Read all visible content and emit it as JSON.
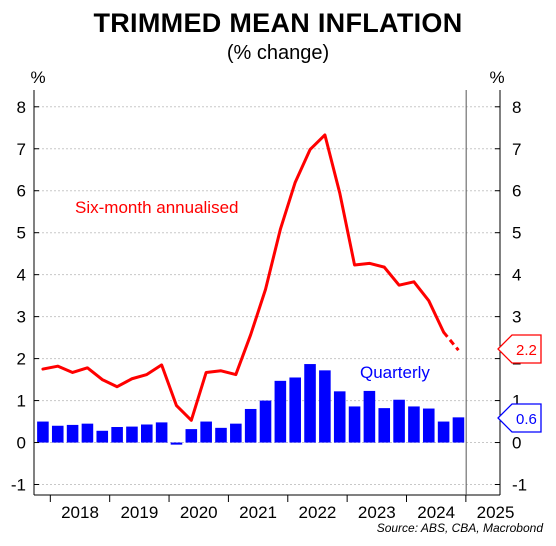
{
  "chart_data": {
    "type": "bar+line",
    "title": "TRIMMED MEAN INFLATION",
    "subtitle": "(% change)",
    "y_unit_left": "%",
    "y_unit_right": "%",
    "ylim": [
      -1.25,
      8.4
    ],
    "y_ticks": [
      -1,
      0,
      1,
      2,
      3,
      4,
      5,
      6,
      7,
      8
    ],
    "year_labels": [
      "2018",
      "2019",
      "2020",
      "2021",
      "2022",
      "2023",
      "2024",
      "2025"
    ],
    "grid": true,
    "series": [
      {
        "name": "Quarterly",
        "type": "bar",
        "color": "#0000ff",
        "x": [
          2017.75,
          2018.0,
          2018.25,
          2018.5,
          2018.75,
          2019.0,
          2019.25,
          2019.5,
          2019.75,
          2020.0,
          2020.25,
          2020.5,
          2020.75,
          2021.0,
          2021.25,
          2021.5,
          2021.75,
          2022.0,
          2022.25,
          2022.5,
          2022.75,
          2023.0,
          2023.25,
          2023.5,
          2023.75,
          2024.0,
          2024.25,
          2024.5,
          2024.75,
          2025.0
        ],
        "values": [
          0.5,
          0.4,
          0.42,
          0.45,
          0.28,
          0.37,
          0.38,
          0.43,
          0.48,
          -0.05,
          0.32,
          0.5,
          0.35,
          0.45,
          0.8,
          1.0,
          1.47,
          1.55,
          1.87,
          1.72,
          1.22,
          0.86,
          1.23,
          0.82,
          1.02,
          0.86,
          0.81,
          0.5,
          0.6,
          null
        ]
      },
      {
        "name": "Six-month annualised",
        "type": "line",
        "color": "#ff0000",
        "x": [
          2017.75,
          2018.0,
          2018.25,
          2018.5,
          2018.75,
          2019.0,
          2019.25,
          2019.5,
          2019.75,
          2020.0,
          2020.25,
          2020.5,
          2020.75,
          2021.0,
          2021.25,
          2021.5,
          2021.75,
          2022.0,
          2022.25,
          2022.5,
          2022.75,
          2023.0,
          2023.25,
          2023.5,
          2023.75,
          2024.0,
          2024.25,
          2024.5
        ],
        "values": [
          1.75,
          1.82,
          1.67,
          1.78,
          1.5,
          1.33,
          1.52,
          1.62,
          1.85,
          0.88,
          0.53,
          1.67,
          1.71,
          1.62,
          2.57,
          3.65,
          5.08,
          6.2,
          6.98,
          7.33,
          5.95,
          4.23,
          4.27,
          4.18,
          3.75,
          3.83,
          3.38,
          2.63
        ]
      },
      {
        "name": "Six-month annualised forecast",
        "type": "line-dashed",
        "color": "#ff0000",
        "x": [
          2024.5,
          2024.75
        ],
        "values": [
          2.63,
          2.2
        ]
      }
    ],
    "callouts": [
      {
        "value": "2.2",
        "color": "#ff0000"
      },
      {
        "value": "0.6",
        "color": "#0000ff"
      }
    ],
    "annotations": [
      {
        "text": "Six-month annualised",
        "color": "#ff0000"
      },
      {
        "text": "Quarterly",
        "color": "#0000ff"
      }
    ],
    "source": "Source: ABS, CBA, Macrobond"
  }
}
